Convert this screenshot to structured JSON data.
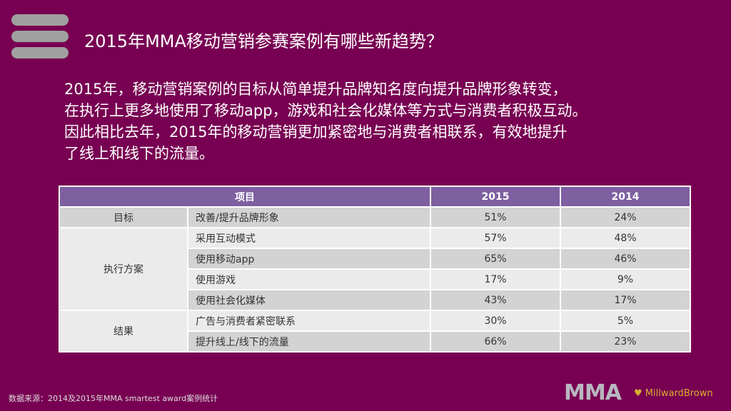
{
  "title": "2015年MMA移动营销参赛案例有哪些新趋势？",
  "intro": [
    "2015年，移动营销案例的目标从简单提升品牌知名度向提升品牌形象转变，",
    "在执行上更多地使用了移动app，游戏和社会化媒体等方式与消费者积极互动。",
    "因此相比去年，2015年的移动营销更加紧密地与消费者相联系，有效地提升",
    "了线上和线下的流量。"
  ],
  "table": {
    "headers": [
      "项目",
      "2015",
      "2014"
    ],
    "groups": [
      "目标",
      "执行方案",
      "结果"
    ],
    "rows": [
      {
        "item": "改善/提升品牌形象",
        "y2015": "51%",
        "y2014": "24%"
      },
      {
        "item": "采用互动模式",
        "y2015": "57%",
        "y2014": "48%"
      },
      {
        "item": "使用移动app",
        "y2015": "65%",
        "y2014": "46%"
      },
      {
        "item": "使用游戏",
        "y2015": "17%",
        "y2014": "9%"
      },
      {
        "item": "使用社会化媒体",
        "y2015": "43%",
        "y2014": "17%"
      },
      {
        "item": "广告与消费者紧密联系",
        "y2015": "30%",
        "y2014": "5%"
      },
      {
        "item": "提升线上/线下的流量",
        "y2015": "66%",
        "y2014": "23%"
      }
    ]
  },
  "source": "数据来源：2014及2015年MMA smartest award案例统计",
  "logos": {
    "mma": "MMA",
    "millward_brown": "MillwardBrown"
  },
  "colors": {
    "background": "#780052",
    "header": "#7e5fa0"
  }
}
